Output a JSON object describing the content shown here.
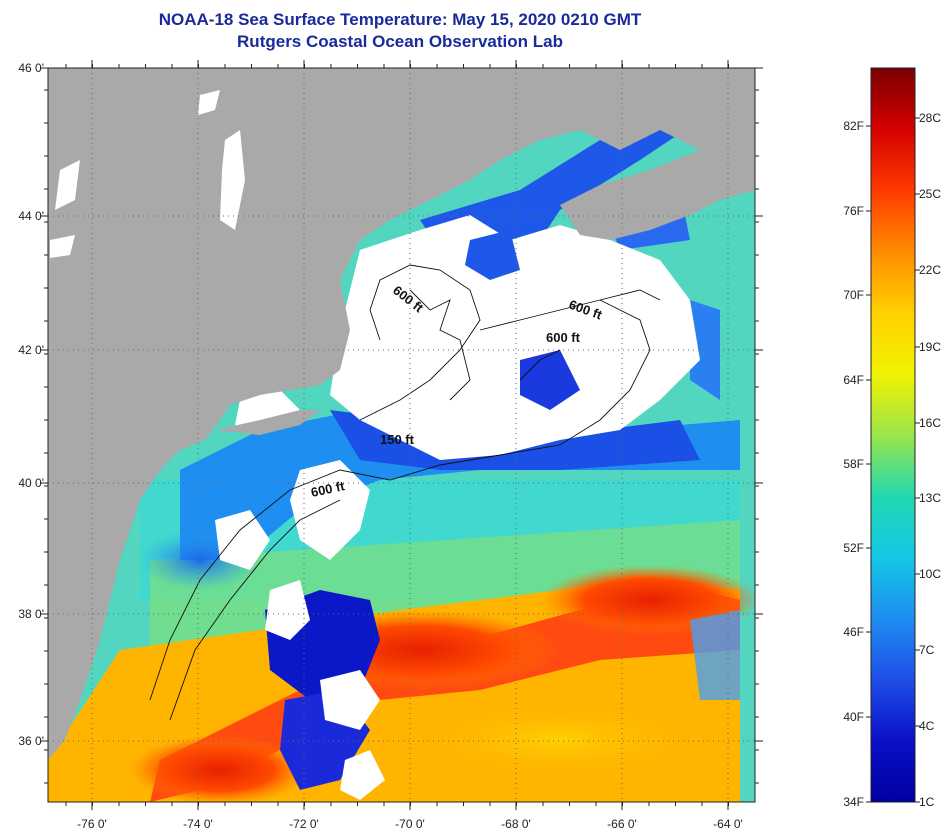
{
  "header": {
    "title": "NOAA-18 Sea Surface Temperature:  May 15, 2020 0210 GMT",
    "subtitle": "Rutgers Coastal Ocean Observation Lab"
  },
  "map": {
    "lat_labels": [
      "46 0'",
      "44 0'",
      "42 0'",
      "40 0'",
      "38 0'",
      "36 0'"
    ],
    "lon_labels": [
      "-76 0'",
      "-74 0'",
      "-72 0'",
      "-70 0'",
      "-68 0'",
      "-66 0'",
      "-64 0'"
    ],
    "contour_labels": [
      "600 ft",
      "600 ft",
      "600 ft",
      "150 ft",
      "600 ft"
    ],
    "colors": {
      "land": "#a9a9a9",
      "cloud_mask": "#ffffff",
      "grid": "#555555"
    }
  },
  "colorbar": {
    "fahrenheit_labels": [
      "82F",
      "76F",
      "70F",
      "64F",
      "58F",
      "52F",
      "46F",
      "40F",
      "34F"
    ],
    "celsius_labels": [
      "28C",
      "25C",
      "22C",
      "19C",
      "16C",
      "13C",
      "10C",
      "7C",
      "4C",
      "1C"
    ],
    "gradient_colors": [
      "#7a0000",
      "#d40000",
      "#ff3a00",
      "#ff8c00",
      "#ffd000",
      "#f2f200",
      "#9be64a",
      "#22d8b0",
      "#14c8e6",
      "#1e8ef0",
      "#1e4ee6",
      "#0a10c8",
      "#0000a0"
    ]
  }
}
